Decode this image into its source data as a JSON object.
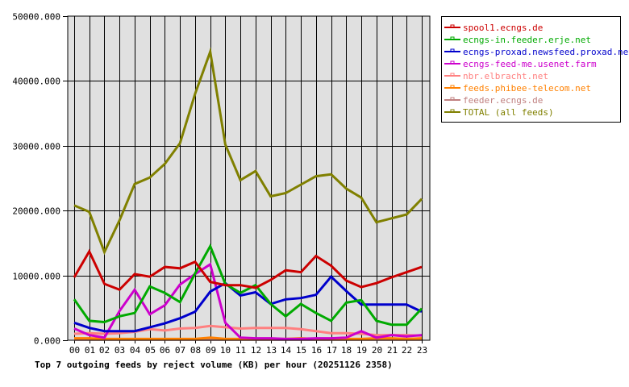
{
  "chart_data": {
    "type": "line",
    "title": "Top 7 outgoing feeds by reject volume (KB) per hour (20251126 2358)",
    "xlabel": "",
    "ylabel": "",
    "ylim": [
      0,
      50000
    ],
    "grid": true,
    "legend_position": "right",
    "y_ticks": [
      "0.000",
      "10000.000",
      "20000.000",
      "30000.000",
      "40000.000",
      "50000.000"
    ],
    "categories": [
      "00",
      "01",
      "02",
      "03",
      "04",
      "05",
      "06",
      "07",
      "08",
      "09",
      "10",
      "11",
      "12",
      "13",
      "14",
      "15",
      "16",
      "17",
      "18",
      "19",
      "20",
      "21",
      "22",
      "23"
    ],
    "series": [
      {
        "name": "spool1.ecngs.de",
        "color": "#cc0000",
        "values": [
          9700,
          13700,
          8700,
          7800,
          10200,
          9800,
          11300,
          11100,
          12100,
          9000,
          8500,
          8500,
          8100,
          9300,
          10800,
          10500,
          13000,
          11500,
          9200,
          8200,
          8800,
          9700,
          10500,
          11300
        ]
      },
      {
        "name": "ecngs-in.feeder.erje.net",
        "color": "#00aa00",
        "values": [
          6300,
          3000,
          2800,
          3700,
          4200,
          8300,
          7300,
          5900,
          10300,
          14500,
          8700,
          7300,
          8500,
          5600,
          3700,
          5600,
          4200,
          3000,
          5800,
          6200,
          3000,
          2400,
          2400,
          4900
        ]
      },
      {
        "name": "ecngs-proxad.newsfeed.proxad.net",
        "color": "#0000cc",
        "values": [
          2700,
          1900,
          1400,
          1400,
          1400,
          2000,
          2600,
          3400,
          4400,
          7500,
          8800,
          6900,
          7400,
          5600,
          6300,
          6500,
          7000,
          9800,
          7600,
          5500,
          5500,
          5500,
          5500,
          4400
        ]
      },
      {
        "name": "ecngs-feed-me.usenet.farm",
        "color": "#cc00cc",
        "values": [
          1800,
          800,
          400,
          4500,
          7800,
          4000,
          5400,
          8600,
          10200,
          11700,
          2700,
          400,
          300,
          300,
          200,
          200,
          300,
          300,
          400,
          1400,
          400,
          800,
          600,
          800
        ]
      },
      {
        "name": "nbr.elbracht.net",
        "color": "#ff8080",
        "values": [
          1000,
          1100,
          1000,
          1100,
          1300,
          1700,
          1500,
          1800,
          1900,
          2200,
          2000,
          1800,
          1900,
          1900,
          1900,
          1700,
          1400,
          1100,
          1100,
          1000,
          800,
          800,
          800,
          700
        ]
      },
      {
        "name": "feeds.phibee-telecom.net",
        "color": "#ff8000",
        "values": [
          300,
          300,
          200,
          200,
          200,
          200,
          200,
          200,
          200,
          400,
          200,
          200,
          200,
          200,
          200,
          300,
          200,
          200,
          200,
          200,
          300,
          300,
          200,
          300
        ]
      },
      {
        "name": "feeder.ecngs.de",
        "color": "#c08080",
        "values": [
          100,
          100,
          100,
          100,
          100,
          100,
          100,
          100,
          100,
          100,
          100,
          100,
          100,
          100,
          100,
          100,
          100,
          100,
          100,
          100,
          100,
          100,
          100,
          100
        ]
      },
      {
        "name": "TOTAL (all feeds)",
        "color": "#808000",
        "values": [
          20800,
          19800,
          13600,
          18500,
          24100,
          25100,
          27200,
          30400,
          38000,
          44500,
          30200,
          24700,
          26100,
          22200,
          22700,
          24000,
          25300,
          25600,
          23400,
          22000,
          18200,
          18800,
          19400,
          21800
        ]
      }
    ]
  },
  "colors": {
    "plot_background": "#e0e0e0",
    "page_background": "#ffffff",
    "grid": "#000000"
  }
}
